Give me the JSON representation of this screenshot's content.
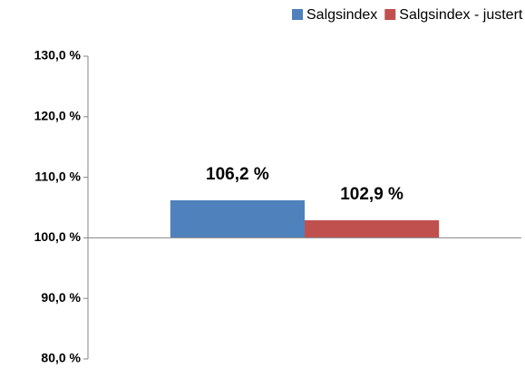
{
  "chart_data": {
    "type": "bar",
    "categories": [
      null
    ],
    "series": [
      {
        "name": "Salgsindex",
        "color": "#4f81bd",
        "values": [
          106.2
        ],
        "value_labels": [
          "106,2 %"
        ]
      },
      {
        "name": "Salgsindex - justert for prisstig",
        "color": "#c0504d",
        "values": [
          102.9
        ],
        "value_labels": [
          "102,9 %"
        ]
      }
    ],
    "ylim": [
      80,
      130
    ],
    "yticks": [
      {
        "value": 80,
        "label": "80,0 %"
      },
      {
        "value": 90,
        "label": "90,0 %"
      },
      {
        "value": 100,
        "label": "100,0 %"
      },
      {
        "value": 110,
        "label": "110,0 %"
      },
      {
        "value": 120,
        "label": "120,0 %"
      },
      {
        "value": 130,
        "label": "130,0 %"
      }
    ],
    "axis_crosses_at": 100,
    "grid": false,
    "legend": "top"
  }
}
